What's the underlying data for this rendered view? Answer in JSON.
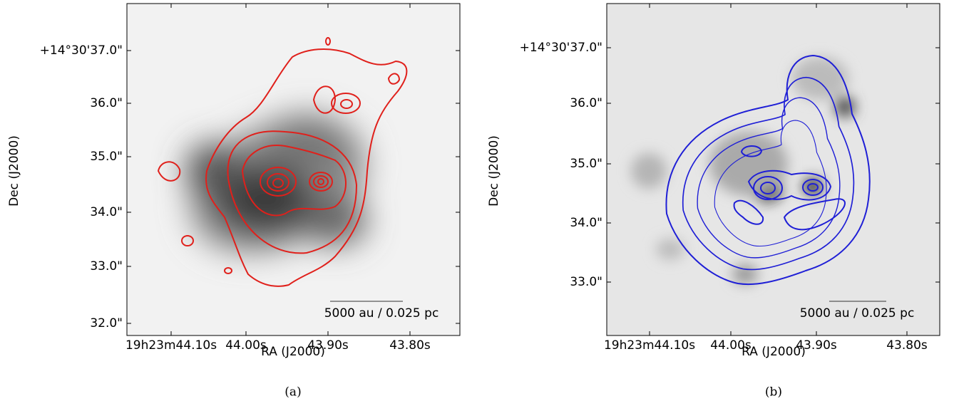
{
  "panels": [
    {
      "caption": "(a)",
      "x_label": "RA (J2000)",
      "y_label": "Dec (J2000)",
      "x_tick_labels": [
        "19h23m44.10s",
        "44.00s",
        "43.90s",
        "43.80s"
      ],
      "y_tick_labels": [
        "+14°30'37.0\"",
        "36.0\"",
        "35.0\"",
        "34.0\"",
        "33.0\"",
        "32.0\""
      ],
      "scale_bar": "5000 au / 0.025 pc"
    },
    {
      "caption": "(b)",
      "x_label": "RA (J2000)",
      "y_label": "Dec (J2000)",
      "x_tick_labels": [
        "19h23m44.10s",
        "44.00s",
        "43.90s",
        "43.80s"
      ],
      "y_tick_labels": [
        "+14°30'37.0\"",
        "36.0\"",
        "35.0\"",
        "34.0\"",
        "33.0\""
      ],
      "scale_bar": "5000 au / 0.025 pc"
    }
  ]
}
